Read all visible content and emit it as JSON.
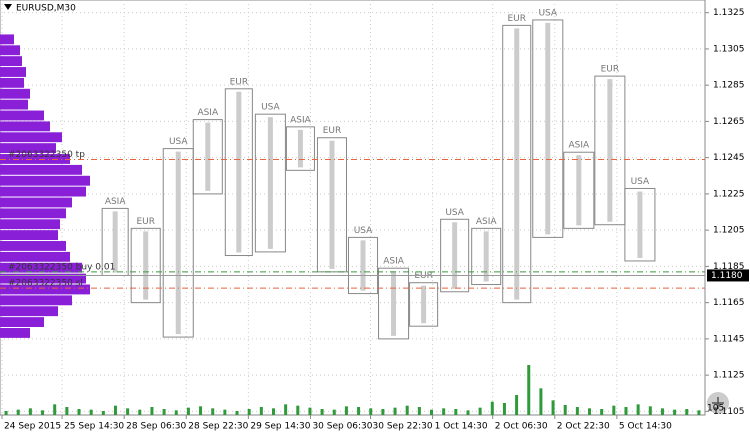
{
  "chart_data": {
    "type": "session-boxes",
    "title": "EURUSD,M30",
    "ylim": [
      1.1103,
      1.1332
    ],
    "yticks": [
      1.1325,
      1.1305,
      1.1285,
      1.1265,
      1.1245,
      1.1225,
      1.1205,
      1.1185,
      1.1165,
      1.1145,
      1.1125,
      1.1105
    ],
    "xlim": [
      0,
      352
    ],
    "xticks": [
      {
        "value": 1,
        "label": "24 Sep 2015"
      },
      {
        "value": 31,
        "label": "25 Sep 14:30"
      },
      {
        "value": 62,
        "label": "28 Sep 06:30"
      },
      {
        "value": 93,
        "label": "28 Sep 22:30"
      },
      {
        "value": 124,
        "label": "29 Sep 14:30"
      },
      {
        "value": 155,
        "label": "30 Sep 06:30"
      },
      {
        "value": 185,
        "label": "30 Sep 22:30"
      },
      {
        "value": 216,
        "label": "1 Oct 14:30"
      },
      {
        "value": 246,
        "label": "2 Oct 06:30"
      },
      {
        "value": 277,
        "label": "2 Oct 22:30"
      },
      {
        "value": 308,
        "label": "5 Oct 14:30"
      }
    ],
    "grid": true,
    "current_price": {
      "value": 1.118,
      "label": "1.1180"
    },
    "orders": [
      {
        "label": "#2063322350 tp",
        "price": 1.1244,
        "color": "#e8643c"
      },
      {
        "label": "#2063322350 buy 0.01",
        "price": 1.1182,
        "color": "#3a9a3a"
      },
      {
        "label": "#2063322350 sl",
        "price": 1.1173,
        "color": "#e8643c"
      }
    ],
    "sessions": [
      {
        "name": "ASIA",
        "start": 51,
        "end": 64,
        "high": 1.1217,
        "low": 1.118
      },
      {
        "name": "EUR",
        "start": 65.5,
        "end": 80,
        "high": 1.1206,
        "low": 1.1165
      },
      {
        "name": "USA",
        "start": 81.5,
        "end": 96.5,
        "high": 1.125,
        "low": 1.1146
      },
      {
        "name": "ASIA",
        "start": 96.5,
        "end": 111,
        "high": 1.1266,
        "low": 1.1225
      },
      {
        "name": "EUR",
        "start": 112.5,
        "end": 126,
        "high": 1.1283,
        "low": 1.1191
      },
      {
        "name": "USA",
        "start": 127.5,
        "end": 142.5,
        "high": 1.1269,
        "low": 1.1193
      },
      {
        "name": "ASIA",
        "start": 143,
        "end": 157,
        "high": 1.1262,
        "low": 1.1238
      },
      {
        "name": "EUR",
        "start": 158.5,
        "end": 173,
        "high": 1.1256,
        "low": 1.1182
      },
      {
        "name": "USA",
        "start": 174,
        "end": 188.5,
        "high": 1.1201,
        "low": 1.117
      },
      {
        "name": "ASIA",
        "start": 189,
        "end": 204,
        "high": 1.1184,
        "low": 1.1145
      },
      {
        "name": "EUR",
        "start": 204.5,
        "end": 218.5,
        "high": 1.1176,
        "low": 1.1152
      },
      {
        "name": "USA",
        "start": 220,
        "end": 234,
        "high": 1.1211,
        "low": 1.1171
      },
      {
        "name": "ASIA",
        "start": 235.5,
        "end": 250,
        "high": 1.1206,
        "low": 1.1175
      },
      {
        "name": "EUR",
        "start": 251,
        "end": 265,
        "high": 1.1318,
        "low": 1.1165
      },
      {
        "name": "USA",
        "start": 266,
        "end": 281,
        "high": 1.1321,
        "low": 1.1201
      },
      {
        "name": "ASIA",
        "start": 281.5,
        "end": 296.5,
        "high": 1.1248,
        "low": 1.1206
      },
      {
        "name": "EUR",
        "start": 297,
        "end": 312,
        "high": 1.129,
        "low": 1.1208
      },
      {
        "name": "USA",
        "start": 312,
        "end": 327,
        "high": 1.1228,
        "low": 1.1188
      }
    ],
    "profile": {
      "color": "#8a1fd8",
      "prices": [
        1.131,
        1.1304,
        1.1298,
        1.1292,
        1.1286,
        1.128,
        1.1274,
        1.1268,
        1.1262,
        1.1256,
        1.125,
        1.1244,
        1.1238,
        1.1232,
        1.1226,
        1.122,
        1.1214,
        1.1208,
        1.1202,
        1.1196,
        1.119,
        1.1184,
        1.1178,
        1.1172,
        1.1166,
        1.116,
        1.1154,
        1.1148
      ],
      "values": [
        14,
        20,
        22,
        26,
        24,
        30,
        28,
        44,
        50,
        62,
        56,
        70,
        82,
        90,
        86,
        72,
        66,
        60,
        58,
        66,
        70,
        82,
        86,
        90,
        72,
        58,
        44,
        30
      ]
    },
    "volume": {
      "color": "#2e9a3a",
      "label": "105",
      "values": [
        6,
        8,
        10,
        7,
        16,
        12,
        9,
        8,
        6,
        14,
        10,
        8,
        12,
        9,
        7,
        11,
        13,
        10,
        8,
        6,
        9,
        12,
        10,
        16,
        14,
        11,
        9,
        8,
        13,
        12,
        10,
        9,
        11,
        14,
        12,
        8,
        10,
        9,
        7,
        11,
        20,
        18,
        30,
        75,
        40,
        22,
        15,
        12,
        10,
        9,
        14,
        12,
        16,
        13,
        10,
        8,
        9,
        7
      ]
    }
  }
}
